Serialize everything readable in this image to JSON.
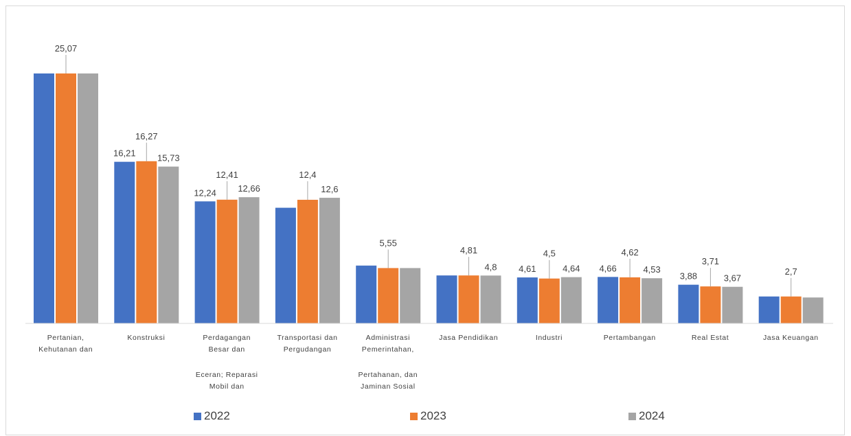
{
  "chart_data": {
    "type": "bar",
    "categories": [
      [
        "Pertanian,",
        "Kehutanan dan"
      ],
      [
        "Konstruksi"
      ],
      [
        "Perdagangan",
        "Besar dan",
        "Eceran; Reparasi",
        "Mobil dan"
      ],
      [
        "Transportasi dan",
        "Pergudangan"
      ],
      [
        "Administrasi",
        "Pemerintahan,",
        "Pertahanan, dan",
        "Jaminan Sosial"
      ],
      [
        "Jasa Pendidikan"
      ],
      [
        "Industri"
      ],
      [
        "Pertambangan"
      ],
      [
        "Real Estat"
      ],
      [
        "Jasa Keuangan"
      ]
    ],
    "series": [
      {
        "name": "2022",
        "color": "#4472c4",
        "values": [
          25.07,
          16.21,
          12.24,
          11.6,
          5.8,
          4.81,
          4.61,
          4.66,
          3.88,
          2.7
        ]
      },
      {
        "name": "2023",
        "color": "#ed7d31",
        "values": [
          25.07,
          16.27,
          12.41,
          12.4,
          5.55,
          4.81,
          4.5,
          4.62,
          3.71,
          2.7
        ]
      },
      {
        "name": "2024",
        "color": "#a5a5a5",
        "values": [
          25.07,
          15.73,
          12.66,
          12.6,
          5.55,
          4.8,
          4.64,
          4.53,
          3.67,
          2.6
        ]
      }
    ],
    "data_labels": [
      [
        null,
        "25,07",
        null
      ],
      [
        "16,21",
        "16,27",
        "15,73"
      ],
      [
        "12,24",
        "12,41",
        "12,66"
      ],
      [
        null,
        "12,4",
        "12,6"
      ],
      [
        null,
        "5,55",
        null
      ],
      [
        null,
        "4,81",
        "4,8"
      ],
      [
        "4,61",
        "4,5",
        "4,64"
      ],
      [
        "4,66",
        "4,62",
        "4,53"
      ],
      [
        "3,88",
        "3,71",
        "3,67"
      ],
      [
        null,
        "2,7",
        null
      ]
    ],
    "ylim": [
      0,
      25.07
    ],
    "grid": false,
    "legend": "bottom",
    "title": "",
    "xlabel": "",
    "ylabel": ""
  }
}
